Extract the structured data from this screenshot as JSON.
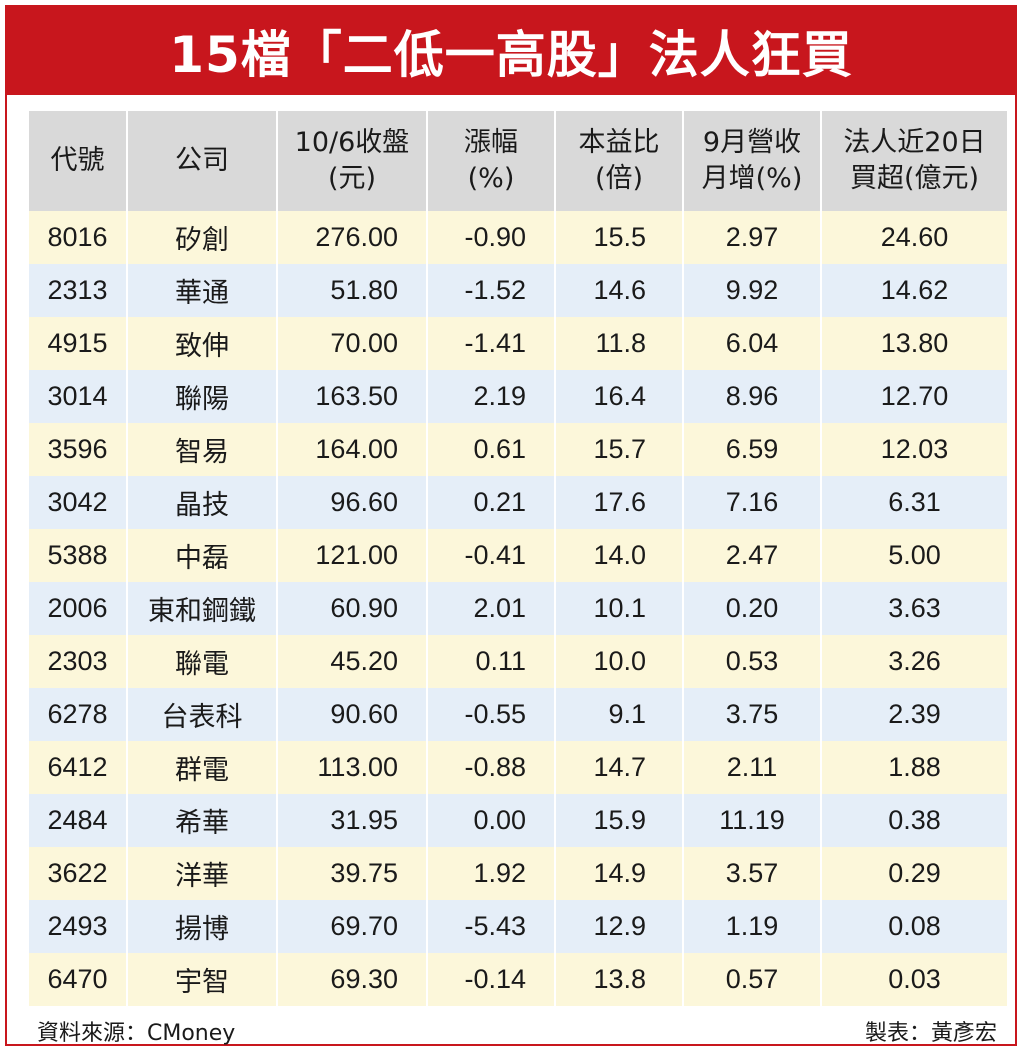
{
  "title": "15檔「二低一高股」法人狂買",
  "headers": [
    {
      "line1": "代號",
      "line2": ""
    },
    {
      "line1": "公司",
      "line2": ""
    },
    {
      "line1": "10/6收盤",
      "line2": "(元)"
    },
    {
      "line1": "漲幅",
      "line2": "(%)"
    },
    {
      "line1": "本益比",
      "line2": "(倍)"
    },
    {
      "line1": "9月營收",
      "line2": "月增(%)"
    },
    {
      "line1": "法人近20日",
      "line2": "買超(億元)"
    }
  ],
  "rows": [
    {
      "code": "8016",
      "name": "矽創",
      "close": "276.00",
      "change": "-0.90",
      "pe": "15.5",
      "revenue_mom": "2.97",
      "net_buy": "24.60"
    },
    {
      "code": "2313",
      "name": "華通",
      "close": "51.80",
      "change": "-1.52",
      "pe": "14.6",
      "revenue_mom": "9.92",
      "net_buy": "14.62"
    },
    {
      "code": "4915",
      "name": "致伸",
      "close": "70.00",
      "change": "-1.41",
      "pe": "11.8",
      "revenue_mom": "6.04",
      "net_buy": "13.80"
    },
    {
      "code": "3014",
      "name": "聯陽",
      "close": "163.50",
      "change": "2.19",
      "pe": "16.4",
      "revenue_mom": "8.96",
      "net_buy": "12.70"
    },
    {
      "code": "3596",
      "name": "智易",
      "close": "164.00",
      "change": "0.61",
      "pe": "15.7",
      "revenue_mom": "6.59",
      "net_buy": "12.03"
    },
    {
      "code": "3042",
      "name": "晶技",
      "close": "96.60",
      "change": "0.21",
      "pe": "17.6",
      "revenue_mom": "7.16",
      "net_buy": "6.31"
    },
    {
      "code": "5388",
      "name": "中磊",
      "close": "121.00",
      "change": "-0.41",
      "pe": "14.0",
      "revenue_mom": "2.47",
      "net_buy": "5.00"
    },
    {
      "code": "2006",
      "name": "東和鋼鐵",
      "close": "60.90",
      "change": "2.01",
      "pe": "10.1",
      "revenue_mom": "0.20",
      "net_buy": "3.63"
    },
    {
      "code": "2303",
      "name": "聯電",
      "close": "45.20",
      "change": "0.11",
      "pe": "10.0",
      "revenue_mom": "0.53",
      "net_buy": "3.26"
    },
    {
      "code": "6278",
      "name": "台表科",
      "close": "90.60",
      "change": "-0.55",
      "pe": "9.1",
      "revenue_mom": "3.75",
      "net_buy": "2.39"
    },
    {
      "code": "6412",
      "name": "群電",
      "close": "113.00",
      "change": "-0.88",
      "pe": "14.7",
      "revenue_mom": "2.11",
      "net_buy": "1.88"
    },
    {
      "code": "2484",
      "name": "希華",
      "close": "31.95",
      "change": "0.00",
      "pe": "15.9",
      "revenue_mom": "11.19",
      "net_buy": "0.38"
    },
    {
      "code": "3622",
      "name": "洋華",
      "close": "39.75",
      "change": "1.92",
      "pe": "14.9",
      "revenue_mom": "3.57",
      "net_buy": "0.29"
    },
    {
      "code": "2493",
      "name": "揚博",
      "close": "69.70",
      "change": "-5.43",
      "pe": "12.9",
      "revenue_mom": "1.19",
      "net_buy": "0.08"
    },
    {
      "code": "6470",
      "name": "宇智",
      "close": "69.30",
      "change": "-0.14",
      "pe": "13.8",
      "revenue_mom": "0.57",
      "net_buy": "0.03"
    }
  ],
  "footer": {
    "source": "資料來源：CMoney",
    "maker": "製表：黃彥宏"
  },
  "colors": {
    "title_bg": "#c8161d",
    "header_bg": "#d9d9d9",
    "row_odd": "#fcf7da",
    "row_even": "#e5eef8"
  }
}
